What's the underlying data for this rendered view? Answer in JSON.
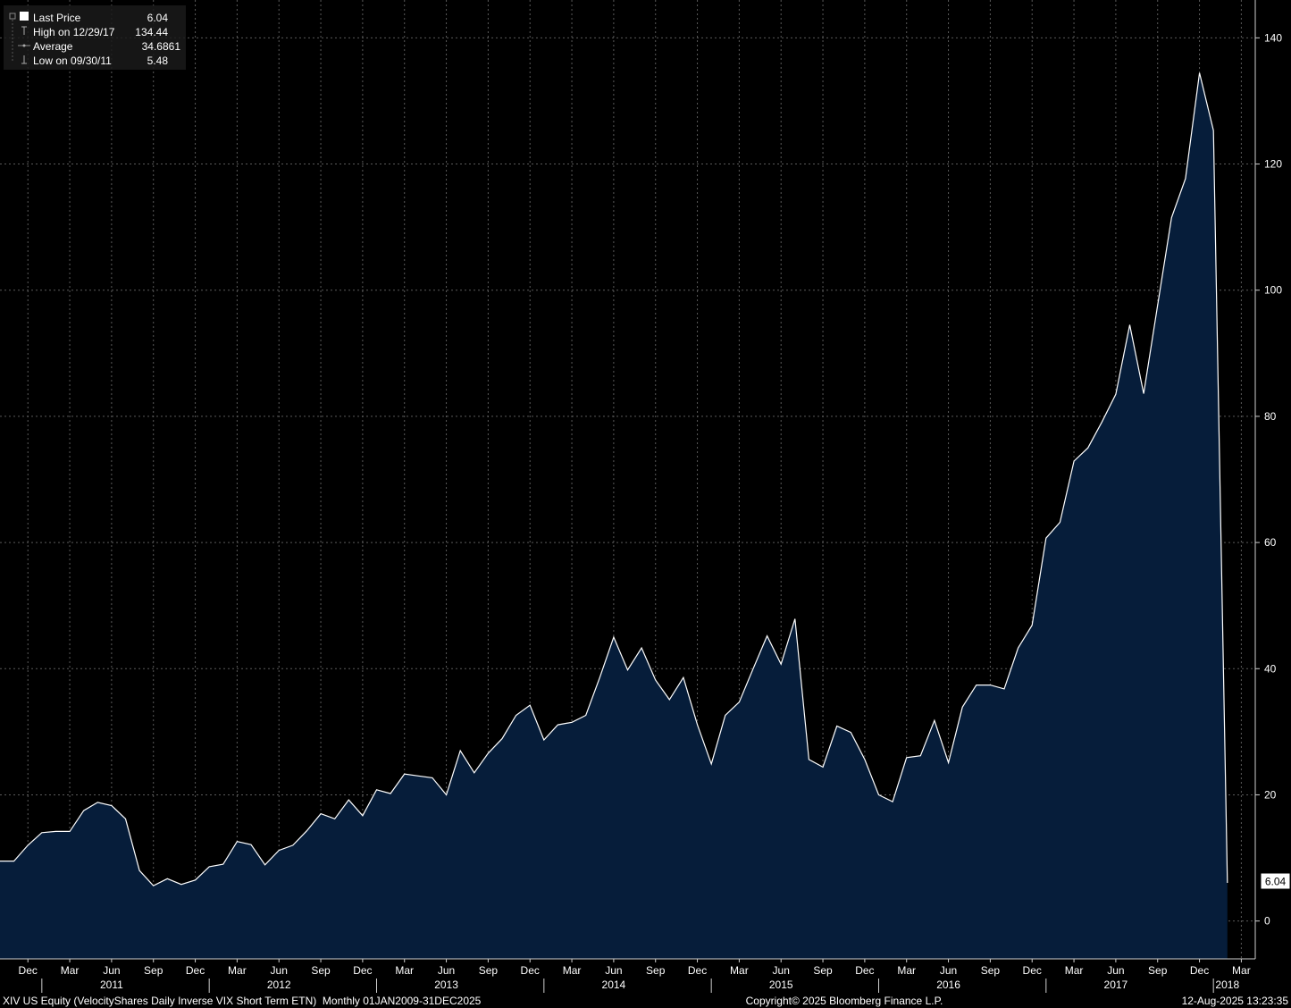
{
  "legend": {
    "items": [
      {
        "label": "Last Price",
        "value": "6.04",
        "icon": "filled-square-icon"
      },
      {
        "label": "High on 12/29/17",
        "value": "134.44",
        "icon": "high-marker-icon"
      },
      {
        "label": "Average",
        "value": "34.6861",
        "icon": "average-line-icon"
      },
      {
        "label": "Low on 09/30/11",
        "value": "5.48",
        "icon": "low-marker-icon"
      }
    ]
  },
  "last_price_tag": "6.04",
  "footer": {
    "left": "XIV US Equity (VelocityShares Daily Inverse VIX Short Term ETN)  Monthly 01JAN2009-31DEC2025",
    "center": "Copyright© 2025 Bloomberg Finance L.P.",
    "right": "12-Aug-2025 13:23:35"
  },
  "colors": {
    "background": "#000000",
    "area_fill": "#061d3a",
    "line": "#ffffff",
    "grid": "#5a5a5a"
  },
  "chart_data": {
    "type": "area",
    "x_unit": "month-end",
    "x": [
      "2010-11",
      "2010-12",
      "2011-01",
      "2011-02",
      "2011-03",
      "2011-04",
      "2011-05",
      "2011-06",
      "2011-07",
      "2011-08",
      "2011-09",
      "2011-10",
      "2011-11",
      "2011-12",
      "2012-01",
      "2012-02",
      "2012-03",
      "2012-04",
      "2012-05",
      "2012-06",
      "2012-07",
      "2012-08",
      "2012-09",
      "2012-10",
      "2012-11",
      "2012-12",
      "2013-01",
      "2013-02",
      "2013-03",
      "2013-04",
      "2013-05",
      "2013-06",
      "2013-07",
      "2013-08",
      "2013-09",
      "2013-10",
      "2013-11",
      "2013-12",
      "2014-01",
      "2014-02",
      "2014-03",
      "2014-04",
      "2014-05",
      "2014-06",
      "2014-07",
      "2014-08",
      "2014-09",
      "2014-10",
      "2014-11",
      "2014-12",
      "2015-01",
      "2015-02",
      "2015-03",
      "2015-04",
      "2015-05",
      "2015-06",
      "2015-07",
      "2015-08",
      "2015-09",
      "2015-10",
      "2015-11",
      "2015-12",
      "2016-01",
      "2016-02",
      "2016-03",
      "2016-04",
      "2016-05",
      "2016-06",
      "2016-07",
      "2016-08",
      "2016-09",
      "2016-10",
      "2016-11",
      "2016-12",
      "2017-01",
      "2017-02",
      "2017-03",
      "2017-04",
      "2017-05",
      "2017-06",
      "2017-07",
      "2017-08",
      "2017-09",
      "2017-10",
      "2017-11",
      "2017-12",
      "2018-01",
      "2018-02"
    ],
    "series": [
      {
        "values": [
          9.5,
          12,
          14,
          14.2,
          14.2,
          17.5,
          18.8,
          18.3,
          16.2,
          8,
          5.6,
          6.7,
          5.8,
          6.5,
          8.6,
          9,
          12.6,
          12.1,
          8.9,
          11.2,
          12,
          14.3,
          17,
          16.2,
          19.2,
          16.7,
          20.8,
          20.2,
          23.3,
          23,
          22.7,
          20,
          27,
          23.5,
          26.6,
          28.9,
          32.6,
          34.2,
          28.7,
          31.1,
          31.5,
          32.6,
          38.6,
          45,
          39.8,
          43.3,
          38.2,
          35.1,
          38.6,
          31.1,
          24.9,
          32.6,
          34.7,
          40,
          45.2,
          40.7,
          47.9,
          25.6,
          24.4,
          30.9,
          29.9,
          25.6,
          20,
          18.9,
          25.9,
          26.2,
          31.8,
          25.1,
          33.9,
          37.4,
          37.4,
          36.8,
          43.3,
          46.9,
          60.7,
          63.2,
          72.9,
          75,
          79.1,
          83.5,
          94.5,
          83.6,
          97.6,
          111.5,
          117.7,
          134.44,
          125.3,
          6.04
        ]
      }
    ],
    "x_ticks": [
      {
        "date": "2010-12",
        "label": "Dec"
      },
      {
        "date": "2011-03",
        "label": "Mar"
      },
      {
        "date": "2011-06",
        "label": "Jun"
      },
      {
        "date": "2011-09",
        "label": "Sep"
      },
      {
        "date": "2011-12",
        "label": "Dec"
      },
      {
        "date": "2012-03",
        "label": "Mar"
      },
      {
        "date": "2012-06",
        "label": "Jun"
      },
      {
        "date": "2012-09",
        "label": "Sep"
      },
      {
        "date": "2012-12",
        "label": "Dec"
      },
      {
        "date": "2013-03",
        "label": "Mar"
      },
      {
        "date": "2013-06",
        "label": "Jun"
      },
      {
        "date": "2013-09",
        "label": "Sep"
      },
      {
        "date": "2013-12",
        "label": "Dec"
      },
      {
        "date": "2014-03",
        "label": "Mar"
      },
      {
        "date": "2014-06",
        "label": "Jun"
      },
      {
        "date": "2014-09",
        "label": "Sep"
      },
      {
        "date": "2014-12",
        "label": "Dec"
      },
      {
        "date": "2015-03",
        "label": "Mar"
      },
      {
        "date": "2015-06",
        "label": "Jun"
      },
      {
        "date": "2015-09",
        "label": "Sep"
      },
      {
        "date": "2015-12",
        "label": "Dec"
      },
      {
        "date": "2016-03",
        "label": "Mar"
      },
      {
        "date": "2016-06",
        "label": "Jun"
      },
      {
        "date": "2016-09",
        "label": "Sep"
      },
      {
        "date": "2016-12",
        "label": "Dec"
      },
      {
        "date": "2017-03",
        "label": "Mar"
      },
      {
        "date": "2017-06",
        "label": "Jun"
      },
      {
        "date": "2017-09",
        "label": "Sep"
      },
      {
        "date": "2017-12",
        "label": "Dec"
      },
      {
        "date": "2018-03",
        "label": "Mar"
      }
    ],
    "year_labels": [
      {
        "date": "2011-06",
        "label": "2011"
      },
      {
        "date": "2012-06",
        "label": "2012"
      },
      {
        "date": "2013-06",
        "label": "2013"
      },
      {
        "date": "2014-06",
        "label": "2014"
      },
      {
        "date": "2015-06",
        "label": "2015"
      },
      {
        "date": "2016-06",
        "label": "2016"
      },
      {
        "date": "2017-06",
        "label": "2017"
      },
      {
        "date": "2018-02",
        "label": "2018"
      }
    ],
    "year_separators": [
      "2011-01",
      "2012-01",
      "2013-01",
      "2014-01",
      "2015-01",
      "2016-01",
      "2017-01",
      "2018-01"
    ],
    "y_ticks": [
      0,
      20,
      40,
      60,
      80,
      100,
      120,
      140
    ],
    "ylim": [
      -6,
      146
    ],
    "xlim": [
      "2010-10",
      "2018-04"
    ],
    "y_axis_position": "right",
    "grid": true,
    "legend_position": "top-left"
  }
}
